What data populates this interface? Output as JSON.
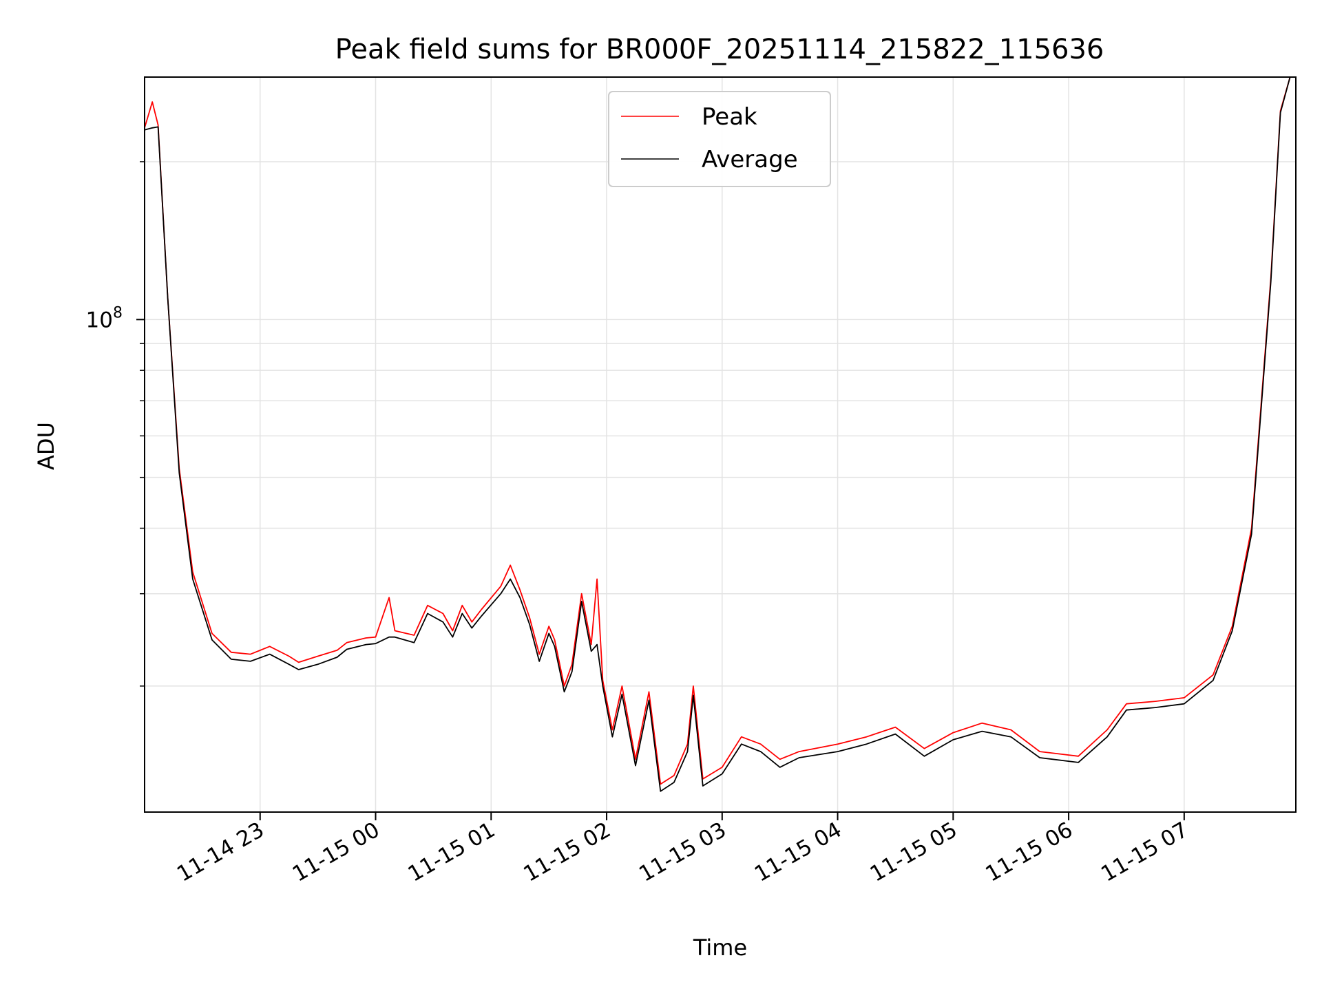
{
  "chart_data": {
    "type": "line",
    "title": "Peak field sums for BR000F_20251114_215822_115636",
    "xlabel": "Time",
    "ylabel": "ADU",
    "y_scale": "log",
    "x_range": [
      "2025-11-14 22:00",
      "2025-11-15 07:58"
    ],
    "y_range": [
      11500000,
      290000000
    ],
    "x_tick_labels": [
      "11-14 23",
      "11-15 00",
      "11-15 01",
      "11-15 02",
      "11-15 03",
      "11-15 04",
      "11-15 05",
      "11-15 06",
      "11-15 07"
    ],
    "x_ticks": [
      "2025-11-14 23:00",
      "2025-11-15 00:00",
      "2025-11-15 01:00",
      "2025-11-15 02:00",
      "2025-11-15 03:00",
      "2025-11-15 04:00",
      "2025-11-15 05:00",
      "2025-11-15 06:00",
      "2025-11-15 07:00"
    ],
    "y_tick_label": {
      "base": "10",
      "exp": "8"
    },
    "y_tick_value": 100000000,
    "grid": true,
    "legend_position": "top-center",
    "series": [
      {
        "name": "Peak",
        "color": "#ff0000",
        "points": [
          [
            "2025-11-14 22:00",
            232000000
          ],
          [
            "2025-11-14 22:04",
            260000000
          ],
          [
            "2025-11-14 22:07",
            235000000
          ],
          [
            "2025-11-14 22:12",
            110000000
          ],
          [
            "2025-11-14 22:18",
            52000000
          ],
          [
            "2025-11-14 22:25",
            33000000
          ],
          [
            "2025-11-14 22:35",
            25200000
          ],
          [
            "2025-11-14 22:45",
            23200000
          ],
          [
            "2025-11-14 22:55",
            23000000
          ],
          [
            "2025-11-14 23:05",
            23800000
          ],
          [
            "2025-11-14 23:15",
            22800000
          ],
          [
            "2025-11-14 23:20",
            22200000
          ],
          [
            "2025-11-14 23:30",
            22800000
          ],
          [
            "2025-11-14 23:40",
            23400000
          ],
          [
            "2025-11-14 23:45",
            24200000
          ],
          [
            "2025-11-14 23:55",
            24700000
          ],
          [
            "2025-11-15 00:00",
            24800000
          ],
          [
            "2025-11-15 00:07",
            29500000
          ],
          [
            "2025-11-15 00:10",
            25500000
          ],
          [
            "2025-11-15 00:20",
            25000000
          ],
          [
            "2025-11-15 00:27",
            28500000
          ],
          [
            "2025-11-15 00:35",
            27500000
          ],
          [
            "2025-11-15 00:40",
            25500000
          ],
          [
            "2025-11-15 00:45",
            28500000
          ],
          [
            "2025-11-15 00:50",
            26500000
          ],
          [
            "2025-11-15 00:55",
            28000000
          ],
          [
            "2025-11-15 01:05",
            31000000
          ],
          [
            "2025-11-15 01:10",
            34000000
          ],
          [
            "2025-11-15 01:15",
            30500000
          ],
          [
            "2025-11-15 01:20",
            27000000
          ],
          [
            "2025-11-15 01:25",
            23000000
          ],
          [
            "2025-11-15 01:30",
            26000000
          ],
          [
            "2025-11-15 01:33",
            24500000
          ],
          [
            "2025-11-15 01:38",
            20000000
          ],
          [
            "2025-11-15 01:42",
            22000000
          ],
          [
            "2025-11-15 01:47",
            30000000
          ],
          [
            "2025-11-15 01:52",
            24000000
          ],
          [
            "2025-11-15 01:55",
            32000000
          ],
          [
            "2025-11-15 01:58",
            20500000
          ],
          [
            "2025-11-15 02:03",
            16500000
          ],
          [
            "2025-11-15 02:08",
            20000000
          ],
          [
            "2025-11-15 02:15",
            14500000
          ],
          [
            "2025-11-15 02:22",
            19500000
          ],
          [
            "2025-11-15 02:28",
            13000000
          ],
          [
            "2025-11-15 02:35",
            13500000
          ],
          [
            "2025-11-15 02:42",
            15500000
          ],
          [
            "2025-11-15 02:45",
            20000000
          ],
          [
            "2025-11-15 02:50",
            13300000
          ],
          [
            "2025-11-15 03:00",
            14000000
          ],
          [
            "2025-11-15 03:10",
            16000000
          ],
          [
            "2025-11-15 03:20",
            15500000
          ],
          [
            "2025-11-15 03:30",
            14500000
          ],
          [
            "2025-11-15 03:40",
            15000000
          ],
          [
            "2025-11-15 04:00",
            15500000
          ],
          [
            "2025-11-15 04:15",
            16000000
          ],
          [
            "2025-11-15 04:30",
            16700000
          ],
          [
            "2025-11-15 04:45",
            15200000
          ],
          [
            "2025-11-15 05:00",
            16300000
          ],
          [
            "2025-11-15 05:15",
            17000000
          ],
          [
            "2025-11-15 05:30",
            16500000
          ],
          [
            "2025-11-15 05:45",
            15000000
          ],
          [
            "2025-11-15 06:05",
            14700000
          ],
          [
            "2025-11-15 06:20",
            16500000
          ],
          [
            "2025-11-15 06:30",
            18500000
          ],
          [
            "2025-11-15 06:45",
            18700000
          ],
          [
            "2025-11-15 07:00",
            19000000
          ],
          [
            "2025-11-15 07:15",
            21000000
          ],
          [
            "2025-11-15 07:25",
            26000000
          ],
          [
            "2025-11-15 07:35",
            40000000
          ],
          [
            "2025-11-15 07:45",
            120000000
          ],
          [
            "2025-11-15 07:50",
            250000000
          ],
          [
            "2025-11-15 07:55",
            290000000
          ]
        ]
      },
      {
        "name": "Average",
        "color": "#000000",
        "points": [
          [
            "2025-11-14 22:00",
            230000000
          ],
          [
            "2025-11-14 22:04",
            232000000
          ],
          [
            "2025-11-14 22:07",
            233000000
          ],
          [
            "2025-11-14 22:12",
            110000000
          ],
          [
            "2025-11-14 22:18",
            51000000
          ],
          [
            "2025-11-14 22:25",
            32000000
          ],
          [
            "2025-11-14 22:35",
            24500000
          ],
          [
            "2025-11-14 22:45",
            22500000
          ],
          [
            "2025-11-14 22:55",
            22300000
          ],
          [
            "2025-11-14 23:05",
            23000000
          ],
          [
            "2025-11-14 23:15",
            22000000
          ],
          [
            "2025-11-14 23:20",
            21500000
          ],
          [
            "2025-11-14 23:30",
            22000000
          ],
          [
            "2025-11-14 23:40",
            22700000
          ],
          [
            "2025-11-14 23:45",
            23500000
          ],
          [
            "2025-11-14 23:55",
            24000000
          ],
          [
            "2025-11-15 00:00",
            24100000
          ],
          [
            "2025-11-15 00:07",
            24800000
          ],
          [
            "2025-11-15 00:10",
            24800000
          ],
          [
            "2025-11-15 00:20",
            24200000
          ],
          [
            "2025-11-15 00:27",
            27500000
          ],
          [
            "2025-11-15 00:35",
            26500000
          ],
          [
            "2025-11-15 00:40",
            24800000
          ],
          [
            "2025-11-15 00:45",
            27500000
          ],
          [
            "2025-11-15 00:50",
            25800000
          ],
          [
            "2025-11-15 00:55",
            27200000
          ],
          [
            "2025-11-15 01:05",
            30000000
          ],
          [
            "2025-11-15 01:10",
            32000000
          ],
          [
            "2025-11-15 01:15",
            29500000
          ],
          [
            "2025-11-15 01:20",
            26200000
          ],
          [
            "2025-11-15 01:25",
            22300000
          ],
          [
            "2025-11-15 01:30",
            25200000
          ],
          [
            "2025-11-15 01:33",
            23800000
          ],
          [
            "2025-11-15 01:38",
            19500000
          ],
          [
            "2025-11-15 01:42",
            21300000
          ],
          [
            "2025-11-15 01:47",
            29000000
          ],
          [
            "2025-11-15 01:52",
            23300000
          ],
          [
            "2025-11-15 01:55",
            24000000
          ],
          [
            "2025-11-15 01:58",
            20000000
          ],
          [
            "2025-11-15 02:03",
            16000000
          ],
          [
            "2025-11-15 02:08",
            19300000
          ],
          [
            "2025-11-15 02:15",
            14100000
          ],
          [
            "2025-11-15 02:22",
            18800000
          ],
          [
            "2025-11-15 02:28",
            12600000
          ],
          [
            "2025-11-15 02:35",
            13100000
          ],
          [
            "2025-11-15 02:42",
            15000000
          ],
          [
            "2025-11-15 02:45",
            19200000
          ],
          [
            "2025-11-15 02:50",
            12900000
          ],
          [
            "2025-11-15 03:00",
            13600000
          ],
          [
            "2025-11-15 03:10",
            15500000
          ],
          [
            "2025-11-15 03:20",
            15000000
          ],
          [
            "2025-11-15 03:30",
            14000000
          ],
          [
            "2025-11-15 03:40",
            14600000
          ],
          [
            "2025-11-15 04:00",
            15000000
          ],
          [
            "2025-11-15 04:15",
            15500000
          ],
          [
            "2025-11-15 04:30",
            16200000
          ],
          [
            "2025-11-15 04:45",
            14700000
          ],
          [
            "2025-11-15 05:00",
            15800000
          ],
          [
            "2025-11-15 05:15",
            16400000
          ],
          [
            "2025-11-15 05:30",
            16000000
          ],
          [
            "2025-11-15 05:45",
            14600000
          ],
          [
            "2025-11-15 06:05",
            14300000
          ],
          [
            "2025-11-15 06:20",
            16000000
          ],
          [
            "2025-11-15 06:30",
            18000000
          ],
          [
            "2025-11-15 06:45",
            18200000
          ],
          [
            "2025-11-15 07:00",
            18500000
          ],
          [
            "2025-11-15 07:15",
            20500000
          ],
          [
            "2025-11-15 07:25",
            25500000
          ],
          [
            "2025-11-15 07:35",
            39000000
          ],
          [
            "2025-11-15 07:45",
            118000000
          ],
          [
            "2025-11-15 07:50",
            248000000
          ],
          [
            "2025-11-15 07:55",
            290000000
          ]
        ]
      }
    ]
  }
}
